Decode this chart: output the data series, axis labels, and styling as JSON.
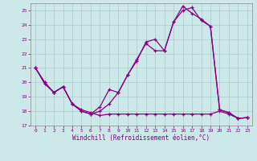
{
  "xlabel": "Windchill (Refroidissement éolien,°C)",
  "background_color": "#cce8e8",
  "grid_color": "#aacccc",
  "line_color": "#880088",
  "ylim": [
    17,
    25.5
  ],
  "xlim": [
    0,
    23
  ],
  "yticks": [
    17,
    18,
    19,
    20,
    21,
    22,
    23,
    24,
    25
  ],
  "xticks": [
    0,
    1,
    2,
    3,
    4,
    5,
    6,
    7,
    8,
    9,
    10,
    11,
    12,
    13,
    14,
    15,
    16,
    17,
    18,
    19,
    20,
    21,
    22,
    23
  ],
  "line1_y": [
    21.0,
    20.0,
    19.3,
    19.7,
    18.5,
    18.0,
    17.8,
    18.0,
    18.5,
    19.3,
    20.5,
    21.6,
    22.7,
    22.2,
    22.2,
    24.2,
    25.0,
    25.2,
    24.3,
    23.9,
    18.1,
    17.9,
    17.5,
    17.55
  ],
  "line2_y": [
    21.0,
    20.0,
    19.3,
    19.7,
    18.5,
    18.0,
    17.8,
    18.3,
    19.5,
    19.3,
    20.5,
    21.5,
    22.8,
    23.0,
    22.2,
    24.2,
    25.3,
    24.8,
    24.4,
    23.9,
    18.1,
    17.9,
    17.5,
    17.55
  ],
  "line3_y": [
    21.0,
    19.9,
    19.3,
    19.7,
    18.5,
    18.1,
    17.9,
    17.7,
    17.8,
    17.8,
    17.8,
    17.8,
    17.8,
    17.8,
    17.8,
    17.8,
    17.8,
    17.8,
    17.8,
    17.8,
    18.0,
    17.8,
    17.5,
    17.55
  ]
}
